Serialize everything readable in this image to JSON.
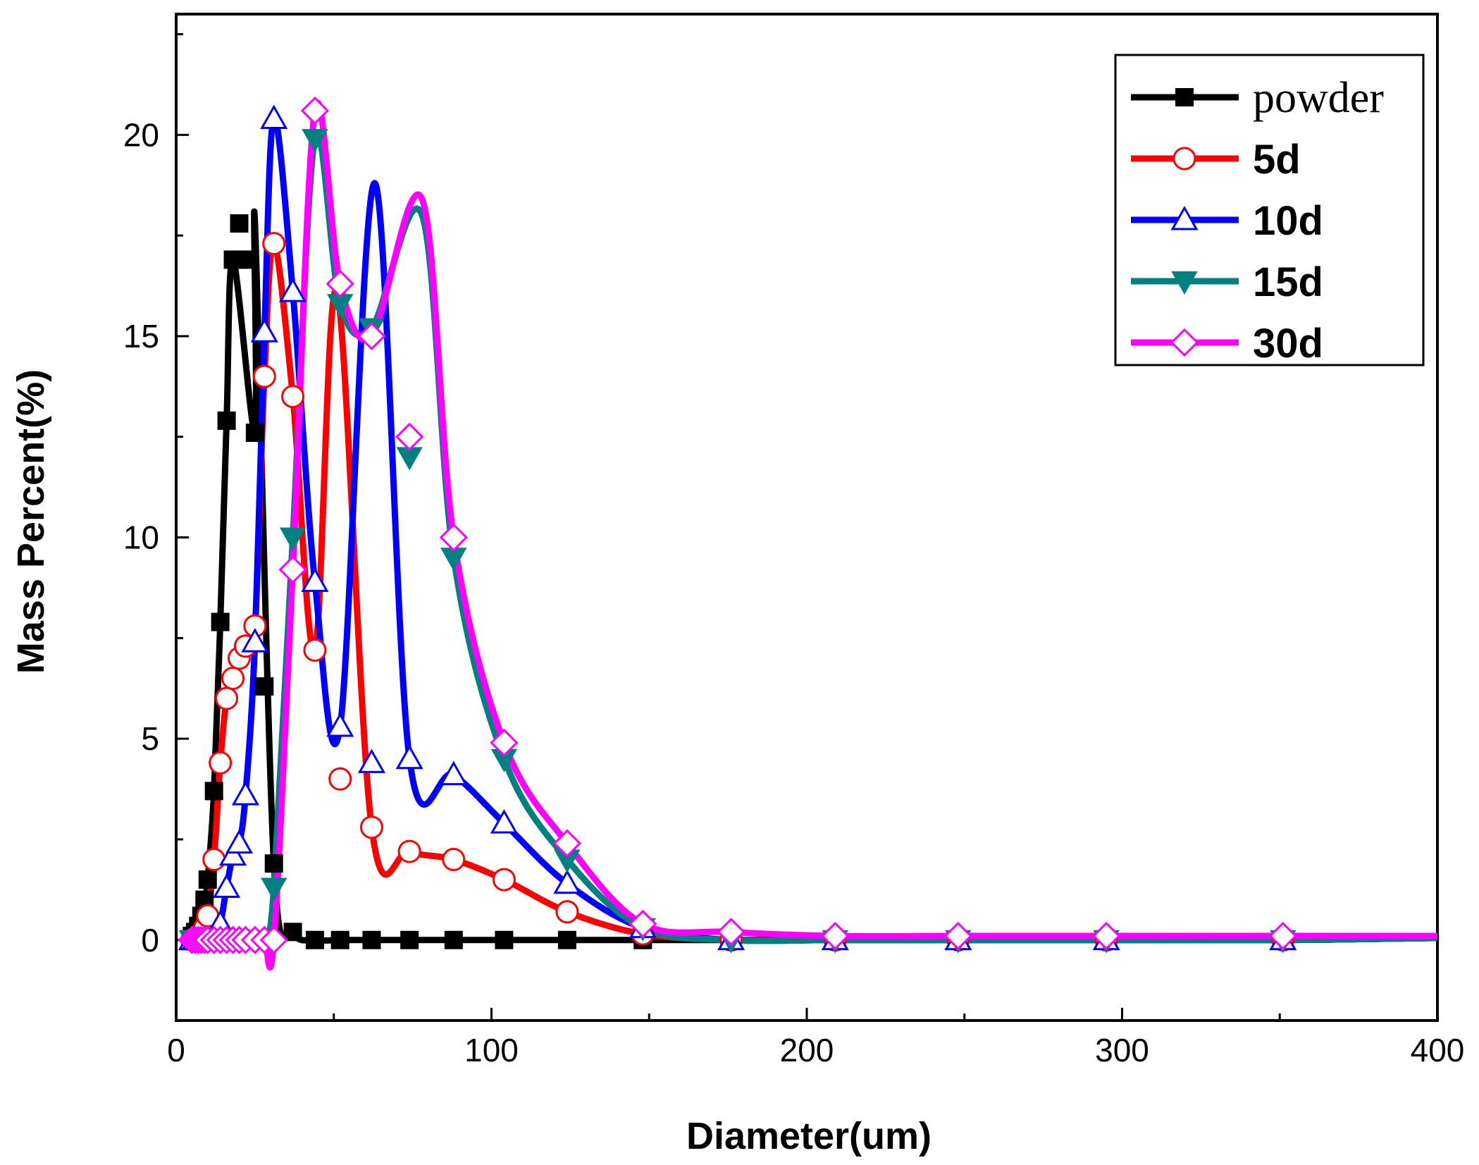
{
  "chart_data": {
    "type": "line",
    "title": "",
    "xlabel": "Diameter(um)",
    "ylabel": "Mass Percent(%)",
    "xlim": [
      0,
      400
    ],
    "ylim": [
      -2,
      23
    ],
    "xticks": [
      0,
      100,
      200,
      300,
      400
    ],
    "yticks": [
      0,
      5,
      10,
      15,
      20
    ],
    "xtick_labels": [
      "0",
      "100",
      "200",
      "300",
      "400"
    ],
    "ytick_labels": [
      "0",
      "5",
      "10",
      "15",
      "20"
    ],
    "grid": false,
    "legend_position": "top-right",
    "series": [
      {
        "name": "powder",
        "color": "#000000",
        "marker": "filled-square",
        "x": [
          5,
          6,
          7,
          8,
          9,
          10,
          12,
          14,
          16,
          18,
          20,
          22,
          25,
          28,
          31,
          37,
          44,
          52,
          62,
          74,
          88,
          104,
          124,
          148,
          176,
          209,
          248,
          295,
          351
        ],
        "y": [
          0.1,
          0.2,
          0.35,
          0.6,
          1.0,
          1.5,
          3.7,
          7.9,
          12.9,
          16.9,
          17.8,
          16.9,
          12.6,
          6.3,
          1.9,
          0.2,
          0.0,
          0.0,
          0.0,
          0.0,
          0.0,
          0.0,
          0.0,
          0.0,
          0.0,
          0.0,
          0.0,
          0.0,
          0.0
        ],
        "smooth_peak": {
          "x": 25,
          "y": 17.8
        }
      },
      {
        "name": "5d",
        "color": "#ff0000",
        "marker": "open-circle",
        "x": [
          5,
          6,
          7,
          8,
          9,
          10,
          12,
          14,
          16,
          18,
          20,
          22,
          25,
          28,
          31,
          37,
          44,
          52,
          62,
          74,
          88,
          104,
          124,
          148,
          176,
          209,
          248,
          295,
          351
        ],
        "y": [
          0.0,
          0.0,
          0.0,
          0.1,
          0.3,
          0.6,
          2.0,
          4.4,
          6.0,
          6.5,
          7.0,
          7.3,
          7.8,
          14.0,
          17.3,
          13.5,
          7.2,
          4.0,
          2.8,
          2.2,
          2.0,
          1.5,
          0.7,
          0.15,
          0.0,
          0.0,
          0.0,
          0.0,
          0.0
        ],
        "smooth_peak": {
          "x": 51,
          "y": 16.1
        }
      },
      {
        "name": "10d",
        "color": "#0000ff",
        "marker": "open-triangle-up",
        "x": [
          5,
          6,
          7,
          8,
          9,
          10,
          12,
          14,
          16,
          18,
          20,
          22,
          25,
          28,
          31,
          37,
          44,
          52,
          62,
          74,
          88,
          104,
          124,
          148,
          176,
          209,
          248,
          295,
          351
        ],
        "y": [
          0.0,
          0.0,
          0.0,
          0.0,
          0.0,
          0.0,
          0.0,
          0.4,
          1.3,
          2.1,
          2.4,
          3.6,
          7.4,
          15.1,
          20.4,
          16.1,
          8.9,
          5.3,
          4.4,
          4.5,
          4.1,
          2.9,
          1.4,
          0.3,
          0.0,
          0.0,
          0.0,
          0.0,
          0.0
        ],
        "smooth_peak": {
          "x": 63,
          "y": 18.8
        }
      },
      {
        "name": "15d",
        "color": "#008080",
        "marker": "filled-triangle-down",
        "x": [
          5,
          6,
          7,
          8,
          9,
          10,
          12,
          14,
          16,
          18,
          20,
          22,
          25,
          28,
          31,
          37,
          44,
          52,
          62,
          74,
          88,
          104,
          124,
          148,
          176,
          209,
          248,
          295,
          351
        ],
        "y": [
          0.0,
          0.0,
          0.0,
          0.0,
          0.0,
          0.0,
          0.0,
          0.0,
          0.0,
          0.0,
          0.0,
          0.0,
          0.0,
          0.0,
          1.3,
          10.0,
          19.9,
          15.8,
          15.2,
          12.0,
          9.5,
          4.5,
          2.0,
          0.3,
          0.0,
          0.0,
          0.0,
          0.0,
          0.0
        ],
        "smooth_peak": {
          "x": 78,
          "y": 18.0
        }
      },
      {
        "name": "30d",
        "color": "#ff00ff",
        "marker": "open-diamond",
        "x": [
          5,
          6,
          7,
          8,
          9,
          10,
          12,
          14,
          16,
          18,
          20,
          22,
          25,
          28,
          31,
          37,
          44,
          52,
          62,
          74,
          88,
          104,
          124,
          148,
          176,
          209,
          248,
          295,
          351
        ],
        "y": [
          0.0,
          0.0,
          0.0,
          0.0,
          0.0,
          0.0,
          0.0,
          0.0,
          0.0,
          0.0,
          0.0,
          0.0,
          0.0,
          0.0,
          0.0,
          9.2,
          20.6,
          16.3,
          15.0,
          12.5,
          10.0,
          4.9,
          2.4,
          0.4,
          0.2,
          0.1,
          0.1,
          0.1,
          0.1
        ],
        "smooth_peak": {
          "x": 78,
          "y": 18.4
        }
      }
    ]
  }
}
